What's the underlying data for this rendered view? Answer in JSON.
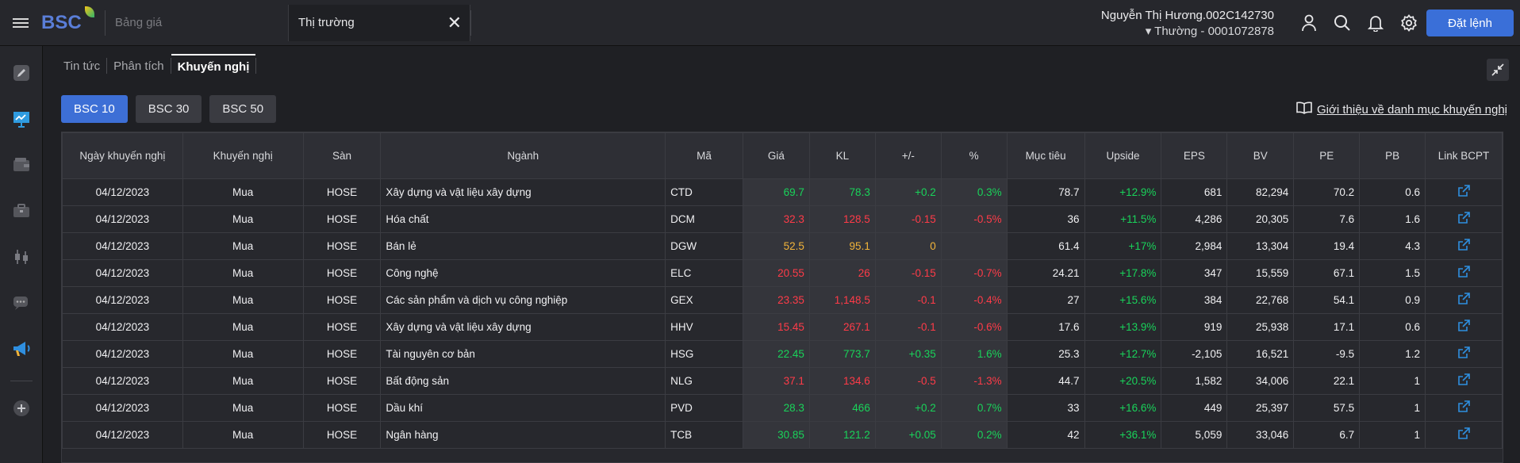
{
  "header": {
    "logo_text": "BSC",
    "search_placeholder": "Bảng giá",
    "active_tab_label": "Thị trường",
    "user_name": "Nguyễn Thị Hương.002C142730",
    "account_label": "Thường - 0001072878",
    "order_button": "Đặt lệnh"
  },
  "subtabs": [
    "Tin tức",
    "Phân tích",
    "Khuyến nghị"
  ],
  "active_subtab": "Khuyến nghị",
  "portfolio_buttons": [
    "BSC 10",
    "BSC 30",
    "BSC 50"
  ],
  "active_portfolio": "BSC 10",
  "intro_link": "Giới thiệu về danh mục khuyến nghị",
  "table": {
    "columns": [
      "Ngày khuyến nghị",
      "Khuyến nghị",
      "Sàn",
      "Ngành",
      "Mã",
      "Giá",
      "KL",
      "+/-",
      "%",
      "Mục tiêu",
      "Upside",
      "EPS",
      "BV",
      "PE",
      "PB",
      "Link BCPT"
    ],
    "rows": [
      {
        "date": "04/12/2023",
        "rec": "Mua",
        "exchange": "HOSE",
        "sector": "Xây dựng và vật liệu xây dựng",
        "code": "CTD",
        "price": "69.7",
        "vol": "78.3",
        "chg": "+0.2",
        "pct": "0.3%",
        "target": "78.7",
        "upside": "+12.9%",
        "eps": "681",
        "bv": "82,294",
        "pe": "70.2",
        "pb": "0.6",
        "trend": "up"
      },
      {
        "date": "04/12/2023",
        "rec": "Mua",
        "exchange": "HOSE",
        "sector": "Hóa chất",
        "code": "DCM",
        "price": "32.3",
        "vol": "128.5",
        "chg": "-0.15",
        "pct": "-0.5%",
        "target": "36",
        "upside": "+11.5%",
        "eps": "4,286",
        "bv": "20,305",
        "pe": "7.6",
        "pb": "1.6",
        "trend": "down"
      },
      {
        "date": "04/12/2023",
        "rec": "Mua",
        "exchange": "HOSE",
        "sector": "Bán lẻ",
        "code": "DGW",
        "price": "52.5",
        "vol": "95.1",
        "chg": "0",
        "pct": "",
        "target": "61.4",
        "upside": "+17%",
        "eps": "2,984",
        "bv": "13,304",
        "pe": "19.4",
        "pb": "4.3",
        "trend": "ref"
      },
      {
        "date": "04/12/2023",
        "rec": "Mua",
        "exchange": "HOSE",
        "sector": "Công nghệ",
        "code": "ELC",
        "price": "20.55",
        "vol": "26",
        "chg": "-0.15",
        "pct": "-0.7%",
        "target": "24.21",
        "upside": "+17.8%",
        "eps": "347",
        "bv": "15,559",
        "pe": "67.1",
        "pb": "1.5",
        "trend": "down"
      },
      {
        "date": "04/12/2023",
        "rec": "Mua",
        "exchange": "HOSE",
        "sector": "Các sản phẩm và dịch vụ công nghiệp",
        "code": "GEX",
        "price": "23.35",
        "vol": "1,148.5",
        "chg": "-0.1",
        "pct": "-0.4%",
        "target": "27",
        "upside": "+15.6%",
        "eps": "384",
        "bv": "22,768",
        "pe": "54.1",
        "pb": "0.9",
        "trend": "down"
      },
      {
        "date": "04/12/2023",
        "rec": "Mua",
        "exchange": "HOSE",
        "sector": "Xây dựng và vật liệu xây dựng",
        "code": "HHV",
        "price": "15.45",
        "vol": "267.1",
        "chg": "-0.1",
        "pct": "-0.6%",
        "target": "17.6",
        "upside": "+13.9%",
        "eps": "919",
        "bv": "25,938",
        "pe": "17.1",
        "pb": "0.6",
        "trend": "down"
      },
      {
        "date": "04/12/2023",
        "rec": "Mua",
        "exchange": "HOSE",
        "sector": "Tài nguyên cơ bản",
        "code": "HSG",
        "price": "22.45",
        "vol": "773.7",
        "chg": "+0.35",
        "pct": "1.6%",
        "target": "25.3",
        "upside": "+12.7%",
        "eps": "-2,105",
        "bv": "16,521",
        "pe": "-9.5",
        "pb": "1.2",
        "trend": "up"
      },
      {
        "date": "04/12/2023",
        "rec": "Mua",
        "exchange": "HOSE",
        "sector": "Bất động sản",
        "code": "NLG",
        "price": "37.1",
        "vol": "134.6",
        "chg": "-0.5",
        "pct": "-1.3%",
        "target": "44.7",
        "upside": "+20.5%",
        "eps": "1,582",
        "bv": "34,006",
        "pe": "22.1",
        "pb": "1",
        "trend": "down"
      },
      {
        "date": "04/12/2023",
        "rec": "Mua",
        "exchange": "HOSE",
        "sector": "Dầu khí",
        "code": "PVD",
        "price": "28.3",
        "vol": "466",
        "chg": "+0.2",
        "pct": "0.7%",
        "target": "33",
        "upside": "+16.6%",
        "eps": "449",
        "bv": "25,397",
        "pe": "57.5",
        "pb": "1",
        "trend": "up"
      },
      {
        "date": "04/12/2023",
        "rec": "Mua",
        "exchange": "HOSE",
        "sector": "Ngân hàng",
        "code": "TCB",
        "price": "30.85",
        "vol": "121.2",
        "chg": "+0.05",
        "pct": "0.2%",
        "target": "42",
        "upside": "+36.1%",
        "eps": "5,059",
        "bv": "33,046",
        "pe": "6.7",
        "pb": "1",
        "trend": "up"
      }
    ]
  },
  "colors": {
    "up": "#19d35a",
    "down": "#ff3b48",
    "ref": "#f2b43a",
    "accent": "#3d6fd6"
  },
  "icons": [
    "menu-icon",
    "user-icon",
    "search-icon",
    "bell-icon",
    "gear-icon",
    "external-link-icon",
    "book-icon",
    "collapse-icon"
  ]
}
